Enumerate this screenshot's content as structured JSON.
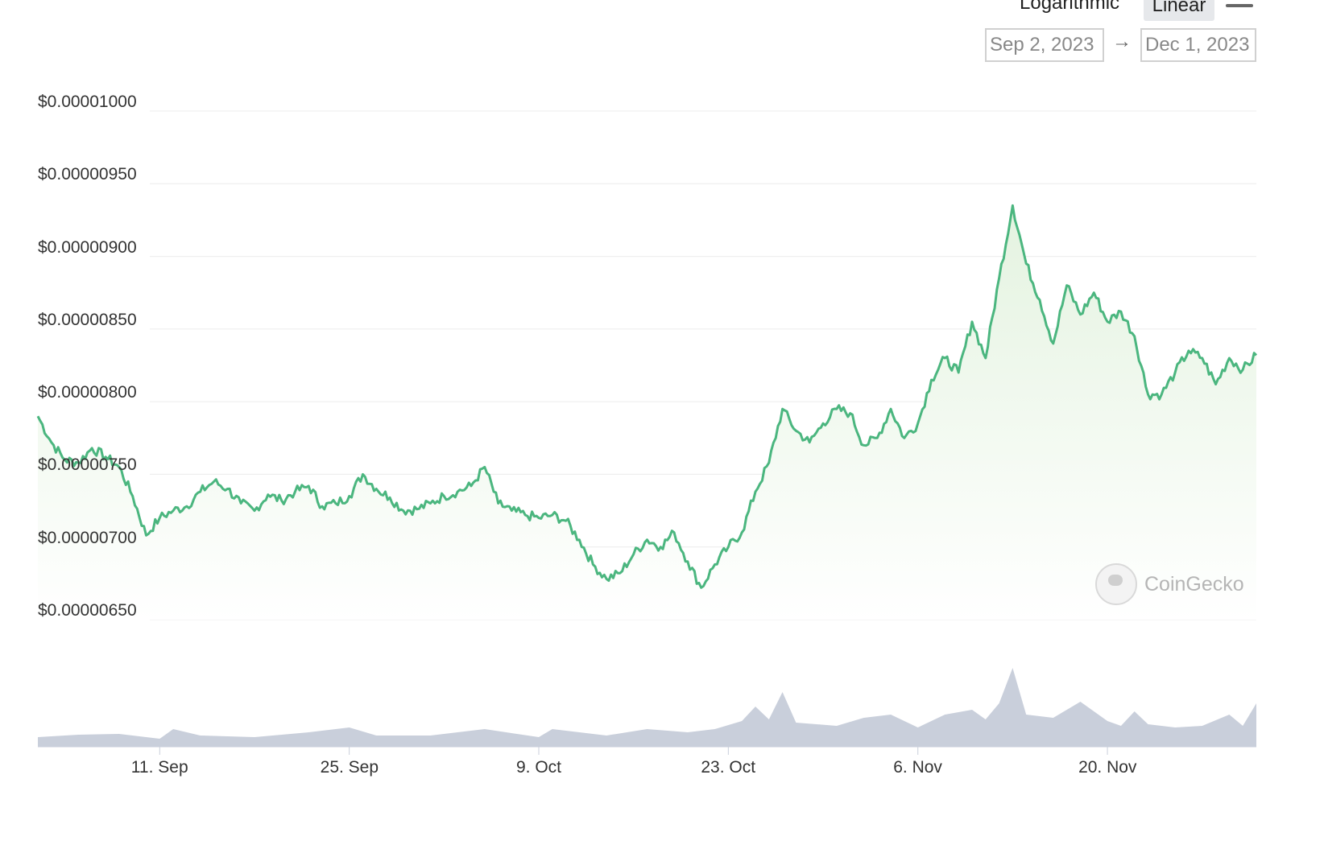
{
  "controls": {
    "scale_options": [
      "Logarithmic",
      "Linear"
    ],
    "scale_selected": "Linear",
    "date_from": "Sep 2, 2023",
    "date_to": "Dec 1, 2023",
    "date_arrow": "→"
  },
  "watermark": {
    "brand": "CoinGecko"
  },
  "colors": {
    "line": "#4bb67f",
    "area_top": "#e4f3e0",
    "volume": "#c9cfdb",
    "grid": "#ececec"
  },
  "chart_data": {
    "type": "line",
    "y_tick_labels": [
      "$0.00001000",
      "$0.00000950",
      "$0.00000900",
      "$0.00000850",
      "$0.00000800",
      "$0.00000750",
      "$0.00000700",
      "$0.00000650"
    ],
    "y_ticks": [
      1e-05,
      9.5e-06,
      9e-06,
      8.5e-06,
      8e-06,
      7.5e-06,
      7e-06,
      6.5e-06
    ],
    "ylim": [
      6.5e-06,
      1e-05
    ],
    "x_tick_labels": [
      "11. Sep",
      "25. Sep",
      "9. Oct",
      "23. Oct",
      "6. Nov",
      "20. Nov"
    ],
    "x_ticks": [
      "2023-09-11",
      "2023-09-25",
      "2023-10-09",
      "2023-10-23",
      "2023-11-06",
      "2023-11-20"
    ],
    "xlim": [
      "2023-09-02",
      "2023-12-01"
    ],
    "grid": true,
    "series": [
      {
        "values": [
          [
            "2023-09-02",
            7.9
          ],
          [
            "2023-09-03",
            7.72
          ],
          [
            "2023-09-04",
            7.6
          ],
          [
            "2023-09-05",
            7.58
          ],
          [
            "2023-09-06",
            7.68
          ],
          [
            "2023-09-07",
            7.62
          ],
          [
            "2023-09-08",
            7.55
          ],
          [
            "2023-09-09",
            7.35
          ],
          [
            "2023-09-10",
            7.08
          ],
          [
            "2023-09-11",
            7.2
          ],
          [
            "2023-09-12",
            7.25
          ],
          [
            "2023-09-13",
            7.28
          ],
          [
            "2023-09-14",
            7.38
          ],
          [
            "2023-09-15",
            7.45
          ],
          [
            "2023-09-16",
            7.4
          ],
          [
            "2023-09-17",
            7.3
          ],
          [
            "2023-09-18",
            7.25
          ],
          [
            "2023-09-19",
            7.36
          ],
          [
            "2023-09-20",
            7.32
          ],
          [
            "2023-09-21",
            7.38
          ],
          [
            "2023-09-22",
            7.42
          ],
          [
            "2023-09-23",
            7.28
          ],
          [
            "2023-09-24",
            7.3
          ],
          [
            "2023-09-25",
            7.35
          ],
          [
            "2023-09-26",
            7.5
          ],
          [
            "2023-09-27",
            7.4
          ],
          [
            "2023-09-28",
            7.34
          ],
          [
            "2023-09-29",
            7.25
          ],
          [
            "2023-09-30",
            7.26
          ],
          [
            "2023-10-01",
            7.3
          ],
          [
            "2023-10-02",
            7.35
          ],
          [
            "2023-10-03",
            7.38
          ],
          [
            "2023-10-04",
            7.42
          ],
          [
            "2023-10-05",
            7.55
          ],
          [
            "2023-10-06",
            7.3
          ],
          [
            "2023-10-07",
            7.25
          ],
          [
            "2023-10-08",
            7.22
          ],
          [
            "2023-10-09",
            7.2
          ],
          [
            "2023-10-10",
            7.22
          ],
          [
            "2023-10-11",
            7.18
          ],
          [
            "2023-10-12",
            7.05
          ],
          [
            "2023-10-13",
            6.88
          ],
          [
            "2023-10-14",
            6.78
          ],
          [
            "2023-10-15",
            6.82
          ],
          [
            "2023-10-16",
            6.95
          ],
          [
            "2023-10-17",
            7.05
          ],
          [
            "2023-10-18",
            7.0
          ],
          [
            "2023-10-19",
            7.1
          ],
          [
            "2023-10-20",
            6.9
          ],
          [
            "2023-10-21",
            6.72
          ],
          [
            "2023-10-22",
            6.88
          ],
          [
            "2023-10-23",
            7.0
          ],
          [
            "2023-10-24",
            7.1
          ],
          [
            "2023-10-25",
            7.38
          ],
          [
            "2023-10-26",
            7.58
          ],
          [
            "2023-10-27",
            7.95
          ],
          [
            "2023-10-28",
            7.8
          ],
          [
            "2023-10-29",
            7.72
          ],
          [
            "2023-10-30",
            7.85
          ],
          [
            "2023-10-31",
            7.95
          ],
          [
            "2023-11-01",
            7.92
          ],
          [
            "2023-11-02",
            7.7
          ],
          [
            "2023-11-03",
            7.75
          ],
          [
            "2023-11-04",
            7.95
          ],
          [
            "2023-11-05",
            7.75
          ],
          [
            "2023-11-06",
            7.85
          ],
          [
            "2023-11-07",
            8.15
          ],
          [
            "2023-11-08",
            8.3
          ],
          [
            "2023-11-09",
            8.2
          ],
          [
            "2023-11-10",
            8.55
          ],
          [
            "2023-11-11",
            8.3
          ],
          [
            "2023-11-12",
            8.85
          ],
          [
            "2023-11-13",
            9.35
          ],
          [
            "2023-11-14",
            8.95
          ],
          [
            "2023-11-15",
            8.7
          ],
          [
            "2023-11-16",
            8.4
          ],
          [
            "2023-11-17",
            8.8
          ],
          [
            "2023-11-18",
            8.6
          ],
          [
            "2023-11-19",
            8.75
          ],
          [
            "2023-11-20",
            8.55
          ],
          [
            "2023-11-21",
            8.62
          ],
          [
            "2023-11-22",
            8.45
          ],
          [
            "2023-11-23",
            8.05
          ],
          [
            "2023-11-24",
            8.05
          ],
          [
            "2023-11-25",
            8.2
          ],
          [
            "2023-11-26",
            8.35
          ],
          [
            "2023-11-27",
            8.3
          ],
          [
            "2023-11-28",
            8.12
          ],
          [
            "2023-11-29",
            8.3
          ],
          [
            "2023-11-30",
            8.22
          ],
          [
            "2023-12-01",
            8.32
          ]
        ],
        "value_multiplier": 1e-06
      }
    ],
    "volume": {
      "values": [
        [
          "2023-09-02",
          12
        ],
        [
          "2023-09-05",
          15
        ],
        [
          "2023-09-08",
          16
        ],
        [
          "2023-09-11",
          10
        ],
        [
          "2023-09-12",
          22
        ],
        [
          "2023-09-14",
          14
        ],
        [
          "2023-09-18",
          12
        ],
        [
          "2023-09-22",
          18
        ],
        [
          "2023-09-25",
          24
        ],
        [
          "2023-09-27",
          14
        ],
        [
          "2023-10-01",
          14
        ],
        [
          "2023-10-05",
          22
        ],
        [
          "2023-10-09",
          12
        ],
        [
          "2023-10-10",
          22
        ],
        [
          "2023-10-14",
          14
        ],
        [
          "2023-10-17",
          22
        ],
        [
          "2023-10-20",
          18
        ],
        [
          "2023-10-22",
          22
        ],
        [
          "2023-10-24",
          32
        ],
        [
          "2023-10-25",
          50
        ],
        [
          "2023-10-26",
          34
        ],
        [
          "2023-10-27",
          68
        ],
        [
          "2023-10-28",
          30
        ],
        [
          "2023-10-31",
          26
        ],
        [
          "2023-11-02",
          36
        ],
        [
          "2023-11-04",
          40
        ],
        [
          "2023-11-06",
          24
        ],
        [
          "2023-11-08",
          40
        ],
        [
          "2023-11-10",
          46
        ],
        [
          "2023-11-11",
          34
        ],
        [
          "2023-11-12",
          54
        ],
        [
          "2023-11-13",
          98
        ],
        [
          "2023-11-14",
          40
        ],
        [
          "2023-11-16",
          36
        ],
        [
          "2023-11-18",
          56
        ],
        [
          "2023-11-20",
          32
        ],
        [
          "2023-11-21",
          26
        ],
        [
          "2023-11-22",
          44
        ],
        [
          "2023-11-23",
          28
        ],
        [
          "2023-11-25",
          24
        ],
        [
          "2023-11-27",
          26
        ],
        [
          "2023-11-29",
          40
        ],
        [
          "2023-11-30",
          26
        ],
        [
          "2023-12-01",
          54
        ]
      ]
    }
  }
}
